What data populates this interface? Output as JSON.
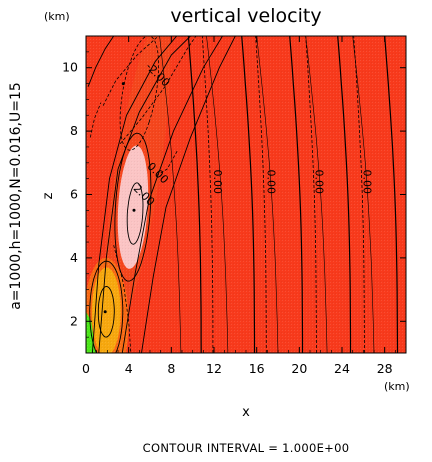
{
  "chart_data": {
    "type": "contour",
    "title": "vertical velocity",
    "side_label": "a=1000,h=1000,N=0.016,U=15",
    "xlabel": "x",
    "ylabel": "z",
    "x_unit": "(km)",
    "y_unit": "(km)",
    "xlim": [
      0,
      30
    ],
    "ylim": [
      1,
      11
    ],
    "x_ticks": [
      0,
      4,
      8,
      12,
      16,
      20,
      24,
      28
    ],
    "y_ticks": [
      2,
      4,
      6,
      8,
      10
    ],
    "footer": "CONTOUR INTERVAL = 1.000E+00",
    "contour_interval": 1.0,
    "contour_labels": [
      {
        "text": "-2.00",
        "x": 6.5,
        "y": 9.7
      },
      {
        "text": "2.00",
        "x": 5.2,
        "y": 5.9
      },
      {
        "text": "0.00",
        "x": 6.5,
        "y": 6.6
      },
      {
        "text": "0.00",
        "x": 12.0,
        "y": 6.4
      },
      {
        "text": "0.00",
        "x": 17.0,
        "y": 6.4
      },
      {
        "text": "0.00",
        "x": 21.5,
        "y": 6.4
      },
      {
        "text": "0.00",
        "x": 26.0,
        "y": 6.4
      },
      {
        "text": "0.00",
        "x": 30.0,
        "y": 6.4
      }
    ],
    "extrema": [
      {
        "type": "max",
        "x": 4.5,
        "y": 5.5,
        "value_range": "> 3"
      },
      {
        "type": "max",
        "x": 1.8,
        "y": 2.3,
        "value_range": "> 2"
      },
      {
        "type": "min",
        "x": 3.5,
        "y": 9.5,
        "value_range": "< -2"
      }
    ],
    "colors": {
      "background": "#f83a1c",
      "neutral": "#f5461d",
      "positive_1": "#f96a14",
      "positive_2": "#f7a80f",
      "positive_3": "#fbc4c4",
      "surface": "#4de81a"
    }
  }
}
